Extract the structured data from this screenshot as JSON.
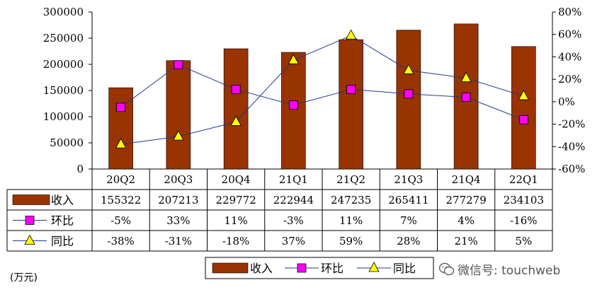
{
  "chart_data": {
    "type": "bar",
    "categories": [
      "20Q2",
      "20Q3",
      "20Q4",
      "21Q1",
      "21Q2",
      "21Q3",
      "21Q4",
      "22Q1"
    ],
    "series": [
      {
        "name": "收入",
        "kind": "bar",
        "axis": "left",
        "values": [
          155322,
          207213,
          229772,
          222944,
          247235,
          265411,
          277279,
          234103
        ],
        "labels": [
          "155322",
          "207213",
          "229772",
          "222944",
          "247235",
          "265411",
          "277279",
          "234103"
        ]
      },
      {
        "name": "环比",
        "kind": "line",
        "axis": "right",
        "marker": "square",
        "values": [
          -5,
          33,
          11,
          -3,
          11,
          7,
          4,
          -16
        ],
        "labels": [
          "-5%",
          "33%",
          "11%",
          "-3%",
          "11%",
          "7%",
          "4%",
          "-16%"
        ]
      },
      {
        "name": "同比",
        "kind": "line",
        "axis": "right",
        "marker": "triangle",
        "values": [
          -38,
          -31,
          -18,
          37,
          59,
          28,
          21,
          5
        ],
        "labels": [
          "-38%",
          "-31%",
          "-18%",
          "37%",
          "59%",
          "28%",
          "21%",
          "5%"
        ]
      }
    ],
    "yleft": {
      "lim": [
        0,
        300000
      ],
      "ticks": [
        0,
        50000,
        100000,
        150000,
        200000,
        250000,
        300000
      ],
      "tick_labels": [
        "0",
        "50000",
        "100000",
        "150000",
        "200000",
        "250000",
        "300000"
      ]
    },
    "yright": {
      "lim": [
        -60,
        80
      ],
      "ticks": [
        -60,
        -40,
        -20,
        0,
        20,
        40,
        60,
        80
      ],
      "tick_labels": [
        "-60%",
        "-40%",
        "-20%",
        "0%",
        "20%",
        "40%",
        "60%",
        "80%"
      ]
    },
    "grid": false,
    "legend_placement": "bottom"
  },
  "colors": {
    "bar": "#993300",
    "mom": "#ff00ff",
    "yoy": "#ffff00",
    "line": "#1f3a93"
  },
  "unit_label": "(万元)",
  "watermark": "微信号: touchweb"
}
